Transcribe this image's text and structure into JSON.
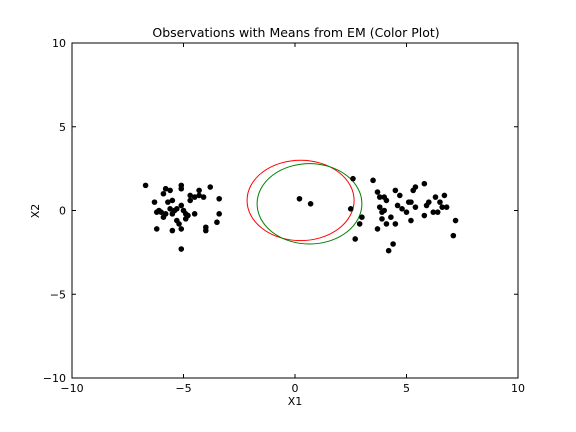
{
  "chart_data": {
    "type": "scatter",
    "title": "Observations with Means from EM (Color Plot)",
    "xlabel": "X1",
    "ylabel": "X2",
    "xlim": [
      -10,
      10
    ],
    "ylim": [
      -10,
      10
    ],
    "xticks": [
      -10,
      -5,
      0,
      5,
      10
    ],
    "yticks": [
      -10,
      -5,
      0,
      5,
      10
    ],
    "xtick_labels": [
      "−10",
      "−5",
      "0",
      "5",
      "10"
    ],
    "ytick_labels": [
      "−10",
      "−5",
      "0",
      "5",
      "10"
    ],
    "grid": false,
    "legend": "none",
    "series": [
      {
        "color": "#000000",
        "points": [
          [
            -6.7,
            1.5
          ],
          [
            -5.8,
            1.3
          ],
          [
            -5.6,
            1.2
          ],
          [
            -5.1,
            1.5
          ],
          [
            -5.1,
            1.3
          ],
          [
            -4.7,
            0.9
          ],
          [
            -4.5,
            0.8
          ],
          [
            -4.3,
            1.2
          ],
          [
            -4.1,
            0.8
          ],
          [
            -3.8,
            1.4
          ],
          [
            -3.4,
            0.7
          ],
          [
            -3.4,
            -0.2
          ],
          [
            -3.5,
            -0.7
          ],
          [
            -4.0,
            -1.0
          ],
          [
            -4.0,
            -1.2
          ],
          [
            -4.5,
            -0.2
          ],
          [
            -4.8,
            -0.3
          ],
          [
            -4.9,
            -0.5
          ],
          [
            -5.0,
            0.0
          ],
          [
            -5.1,
            0.3
          ],
          [
            -5.3,
            0.1
          ],
          [
            -5.5,
            -0.2
          ],
          [
            -5.6,
            0.1
          ],
          [
            -5.8,
            -0.2
          ],
          [
            -6.0,
            -0.1
          ],
          [
            -6.2,
            -0.1
          ],
          [
            -6.3,
            0.5
          ],
          [
            -6.2,
            -1.1
          ],
          [
            -5.9,
            1.0
          ],
          [
            -5.7,
            0.5
          ],
          [
            -5.5,
            0.6
          ],
          [
            -5.5,
            -1.2
          ],
          [
            -5.1,
            -1.1
          ],
          [
            -5.2,
            -0.8
          ],
          [
            -5.3,
            -0.6
          ],
          [
            -5.1,
            -2.3
          ],
          [
            -4.7,
            0.6
          ],
          [
            -4.3,
            0.9
          ],
          [
            -4.9,
            -0.2
          ],
          [
            -5.9,
            -0.4
          ],
          [
            -6.1,
            0.0
          ],
          [
            -5.4,
            0.0
          ],
          [
            2.6,
            1.9
          ],
          [
            3.5,
            1.8
          ],
          [
            3.7,
            1.1
          ],
          [
            3.8,
            0.8
          ],
          [
            4.0,
            0.8
          ],
          [
            4.1,
            0.6
          ],
          [
            4.5,
            1.2
          ],
          [
            4.7,
            0.9
          ],
          [
            5.1,
            0.5
          ],
          [
            5.3,
            1.2
          ],
          [
            5.4,
            1.4
          ],
          [
            5.8,
            1.6
          ],
          [
            6.0,
            0.5
          ],
          [
            6.5,
            0.5
          ],
          [
            6.7,
            0.9
          ],
          [
            6.6,
            0.2
          ],
          [
            6.8,
            0.2
          ],
          [
            7.2,
            -0.6
          ],
          [
            7.1,
            -1.5
          ],
          [
            6.4,
            -0.1
          ],
          [
            6.2,
            -0.1
          ],
          [
            5.8,
            -0.3
          ],
          [
            5.4,
            0.2
          ],
          [
            5.2,
            0.5
          ],
          [
            5.0,
            -0.1
          ],
          [
            4.8,
            0.1
          ],
          [
            4.6,
            0.3
          ],
          [
            4.3,
            -0.4
          ],
          [
            4.1,
            -0.8
          ],
          [
            3.9,
            -0.5
          ],
          [
            3.9,
            -0.1
          ],
          [
            3.8,
            0.2
          ],
          [
            3.7,
            -1.1
          ],
          [
            4.2,
            -2.4
          ],
          [
            4.4,
            -2.0
          ],
          [
            2.7,
            -1.7
          ],
          [
            2.9,
            -0.8
          ],
          [
            3.0,
            -0.4
          ],
          [
            2.5,
            0.1
          ],
          [
            4.5,
            -0.8
          ],
          [
            5.2,
            -0.6
          ],
          [
            5.9,
            0.3
          ],
          [
            6.3,
            0.8
          ],
          [
            4.0,
            0.0
          ]
        ]
      },
      {
        "color": "#000000",
        "points": [
          [
            0.2,
            0.7
          ],
          [
            0.7,
            0.4
          ]
        ]
      }
    ],
    "ellipses": [
      {
        "color": "#ff0000",
        "center": [
          0.25,
          0.6
        ],
        "rx": 2.4,
        "ry": 2.4
      },
      {
        "color": "#008000",
        "center": [
          0.65,
          0.4
        ],
        "rx": 2.35,
        "ry": 2.4
      }
    ]
  }
}
